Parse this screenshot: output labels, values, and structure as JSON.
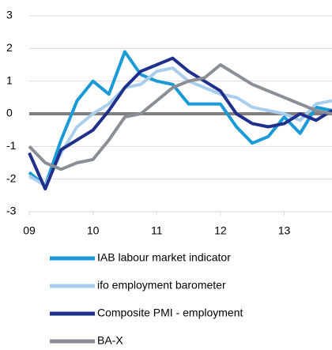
{
  "chart_data": {
    "type": "line",
    "x": [
      2009,
      2009.25,
      2009.5,
      2009.75,
      2010,
      2010.25,
      2010.5,
      2010.75,
      2011,
      2011.25,
      2011.5,
      2011.75,
      2012,
      2012.25,
      2012.5,
      2012.75,
      2013,
      2013.25,
      2013.5,
      2013.75
    ],
    "xlim": [
      2009,
      2013.75
    ],
    "xticks": [
      {
        "value": 2009,
        "label": "09"
      },
      {
        "value": 2010,
        "label": "10"
      },
      {
        "value": 2011,
        "label": "11"
      },
      {
        "value": 2012,
        "label": "12"
      },
      {
        "value": 2013,
        "label": "13"
      }
    ],
    "ylim": [
      -3,
      3
    ],
    "yticks": [
      -3,
      -2,
      -1,
      0,
      1,
      2,
      3
    ],
    "grid": true,
    "series": [
      {
        "name": "IAB labour market indicator",
        "color": "#1a9ad6",
        "values": [
          -1.8,
          -2.2,
          -0.8,
          0.4,
          1.0,
          0.6,
          1.9,
          1.2,
          1.0,
          0.9,
          0.3,
          0.3,
          0.3,
          -0.4,
          -0.9,
          -0.7,
          -0.1,
          -0.6,
          0.2,
          0.1
        ]
      },
      {
        "name": "ifo employment barometer",
        "color": "#a9cdec",
        "values": [
          -1.9,
          -2.2,
          -1.2,
          -0.4,
          0.0,
          0.3,
          0.8,
          0.9,
          1.3,
          1.4,
          1.0,
          0.8,
          0.6,
          0.5,
          0.2,
          0.1,
          0.0,
          -0.2,
          0.3,
          0.4
        ]
      },
      {
        "name": "Composite PMI - employment",
        "color": "#1f2f8c",
        "values": [
          -1.2,
          -2.3,
          -1.1,
          -0.8,
          -0.5,
          0.1,
          0.8,
          1.3,
          1.5,
          1.7,
          1.3,
          1.0,
          0.7,
          0.0,
          -0.3,
          -0.4,
          -0.3,
          0.0,
          -0.2,
          0.1
        ]
      },
      {
        "name": "BA-X",
        "color": "#8a8f96",
        "values": [
          -1.0,
          -1.5,
          -1.7,
          -1.5,
          -1.4,
          -0.8,
          -0.1,
          0.0,
          0.4,
          0.8,
          1.0,
          1.1,
          1.5,
          1.2,
          0.9,
          0.7,
          0.5,
          0.3,
          0.1,
          0.0
        ]
      }
    ]
  }
}
